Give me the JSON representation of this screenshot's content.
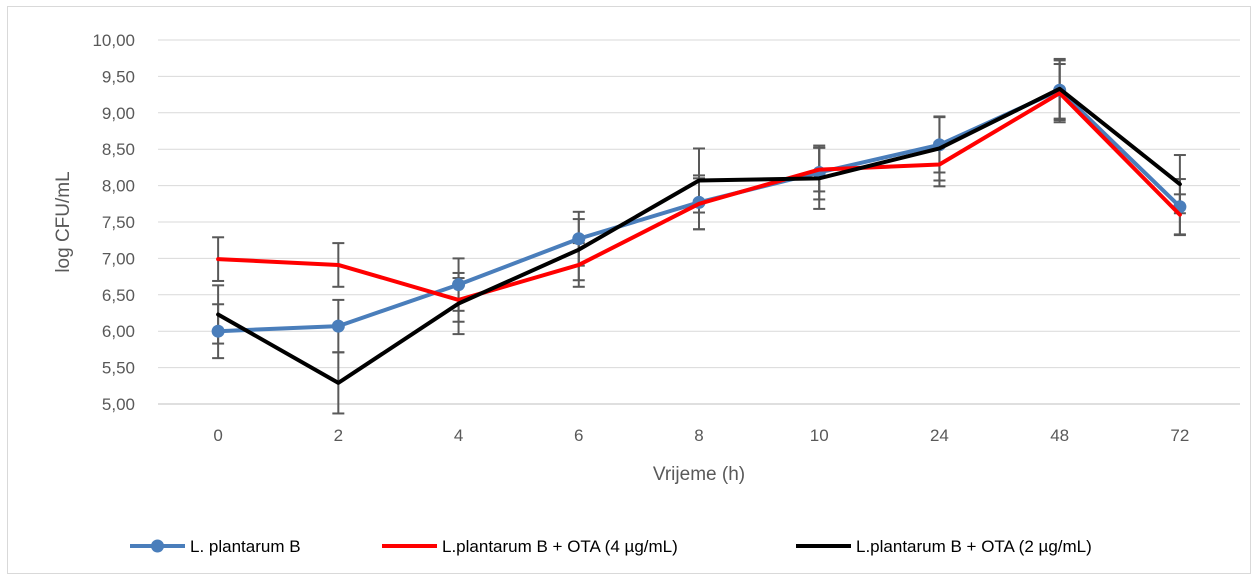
{
  "chart_data": {
    "type": "line",
    "categories": [
      "0",
      "2",
      "4",
      "6",
      "8",
      "10",
      "24",
      "48",
      "72"
    ],
    "xlabel": "Vrijeme (h)",
    "ylabel": "log CFU/mL",
    "ylim": [
      5.0,
      10.0
    ],
    "yticks": [
      "5,00",
      "5,50",
      "6,00",
      "6,50",
      "7,00",
      "7,50",
      "8,00",
      "8,50",
      "9,00",
      "9,50",
      "10,00"
    ],
    "grid": "horizontal",
    "legend_position": "bottom",
    "series": [
      {
        "name": "L. plantarum B",
        "color": "#4a7ebb",
        "marker": "circle",
        "values": [
          6.0,
          6.07,
          6.64,
          7.27,
          7.77,
          8.18,
          8.56,
          9.31,
          7.71
        ],
        "error": [
          0.37,
          0.36,
          0.36,
          0.37,
          0.37,
          0.37,
          0.38,
          0.41,
          0.38
        ]
      },
      {
        "name": "L.plantarum B + OTA (4 µg/mL)",
        "color": "#ff0000",
        "marker": "none",
        "values": [
          6.99,
          6.91,
          6.43,
          6.91,
          7.75,
          8.22,
          8.29,
          9.27,
          7.6
        ],
        "error": [
          0.3,
          0.3,
          0.3,
          0.3,
          0.35,
          0.3,
          0.3,
          0.4,
          0.28
        ]
      },
      {
        "name": "L.plantarum B + OTA (2 µg/mL)",
        "color": "#000000",
        "marker": "none",
        "values": [
          6.23,
          5.29,
          6.38,
          7.12,
          8.07,
          8.1,
          8.51,
          9.33,
          8.02
        ],
        "error": [
          0.4,
          0.42,
          0.42,
          0.42,
          0.44,
          0.42,
          0.44,
          0.41,
          0.4
        ]
      }
    ]
  }
}
